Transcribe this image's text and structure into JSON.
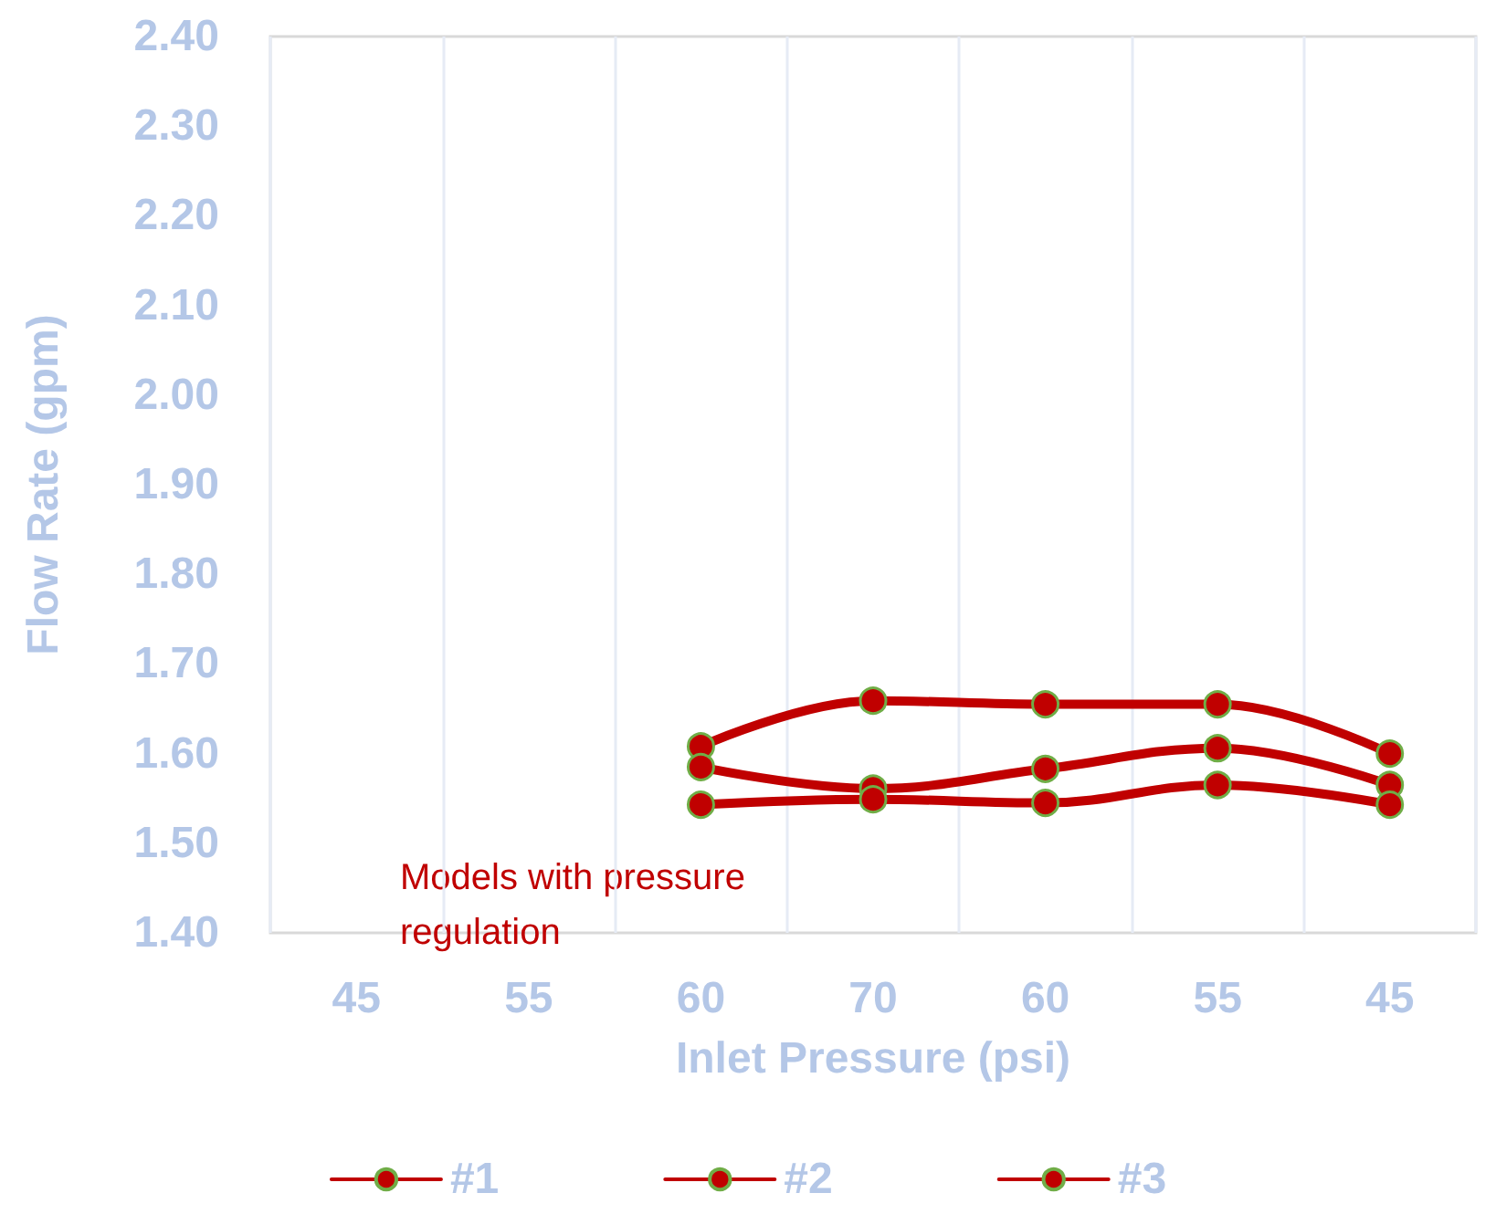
{
  "chart_data": {
    "type": "line",
    "xlabel": "Inlet Pressure (psi)",
    "ylabel": "Flow Rate (gpm)",
    "annotations": [
      "Models with pressure\nregulation"
    ],
    "categories": [
      "45",
      "55",
      "60",
      "70",
      "60",
      "55",
      "45"
    ],
    "ylim": [
      1.4,
      2.4
    ],
    "yticks": [
      {
        "value": 1.4,
        "label": "1.40"
      },
      {
        "value": 1.5,
        "label": "1.50"
      },
      {
        "value": 1.6,
        "label": "1.60"
      },
      {
        "value": 1.7,
        "label": "1.70"
      },
      {
        "value": 1.8,
        "label": "1.80"
      },
      {
        "value": 1.9,
        "label": "1.90"
      },
      {
        "value": 2.0,
        "label": "2.00"
      },
      {
        "value": 2.1,
        "label": "2.10"
      },
      {
        "value": 2.2,
        "label": "2.20"
      },
      {
        "value": 2.3,
        "label": "2.30"
      },
      {
        "value": 2.4,
        "label": "2.40"
      }
    ],
    "grid": "x",
    "legend": "bottom",
    "marker": "circle",
    "line_style": "solid",
    "series": [
      {
        "name": "#1",
        "color": "#c00000",
        "values": [
          null,
          null,
          1.608,
          1.659,
          1.655,
          1.655,
          1.6
        ]
      },
      {
        "name": "#2",
        "color": "#c00000",
        "values": [
          null,
          null,
          1.585,
          1.561,
          1.583,
          1.606,
          1.565
        ]
      },
      {
        "name": "#3",
        "color": "#c00000",
        "values": [
          null,
          null,
          1.543,
          1.549,
          1.545,
          1.565,
          1.543
        ]
      }
    ]
  }
}
